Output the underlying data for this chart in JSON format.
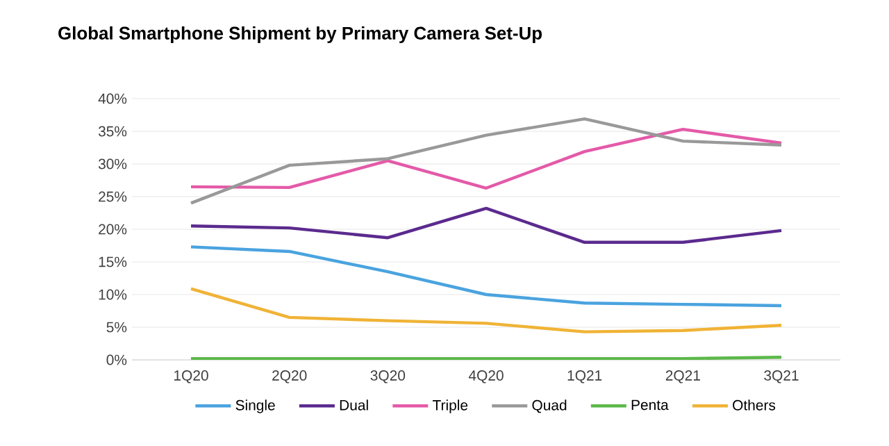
{
  "chart_data": {
    "type": "line",
    "title": "Global Smartphone Shipment by  Primary Camera Set-Up",
    "categories": [
      "1Q20",
      "2Q20",
      "3Q20",
      "4Q20",
      "1Q21",
      "2Q21",
      "3Q21"
    ],
    "series": [
      {
        "name": "Single",
        "color": "#4aa3df",
        "values": [
          17.3,
          16.6,
          13.5,
          10,
          8.7,
          8.5,
          8.3
        ]
      },
      {
        "name": "Dual",
        "color": "#5b2a8e",
        "values": [
          20.5,
          20.2,
          18.7,
          23.2,
          18,
          18,
          19.8
        ]
      },
      {
        "name": "Triple",
        "color": "#e45aa8",
        "values": [
          26.5,
          26.4,
          30.5,
          26.3,
          31.9,
          35.3,
          33.2
        ]
      },
      {
        "name": "Quad",
        "color": "#999999",
        "values": [
          24,
          29.8,
          30.8,
          34.4,
          36.9,
          33.5,
          32.9
        ]
      },
      {
        "name": "Penta",
        "color": "#5cb84a",
        "values": [
          0.2,
          0.2,
          0.2,
          0.2,
          0.2,
          0.2,
          0.4
        ]
      },
      {
        "name": "Others",
        "color": "#f0b336",
        "values": [
          10.9,
          6.5,
          6,
          5.6,
          4.3,
          4.5,
          5.3
        ]
      }
    ],
    "ylim": [
      0,
      40
    ],
    "yticks": [
      {
        "value": 0,
        "label": "0%"
      },
      {
        "value": 5,
        "label": "5%"
      },
      {
        "value": 10,
        "label": "10%"
      },
      {
        "value": 15,
        "label": "15%"
      },
      {
        "value": 20,
        "label": "20%"
      },
      {
        "value": 25,
        "label": "25%"
      },
      {
        "value": 30,
        "label": "30%"
      },
      {
        "value": 35,
        "label": "35%"
      },
      {
        "value": 40,
        "label": "40%"
      }
    ],
    "grid": "y",
    "legend": "bottom",
    "marker": "none",
    "line_style": "solid"
  }
}
